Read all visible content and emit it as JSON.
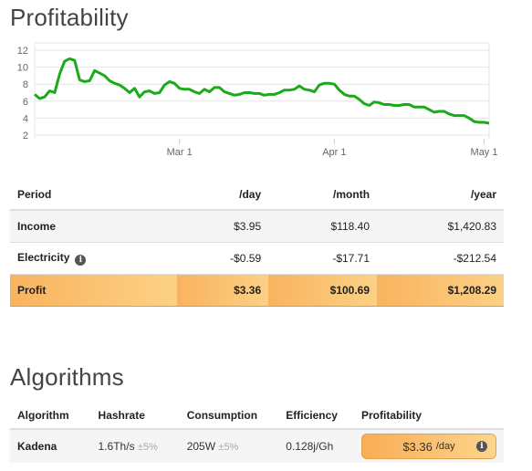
{
  "profitability": {
    "title": "Profitability"
  },
  "chart_data": {
    "type": "line",
    "ylim": [
      2,
      12
    ],
    "yticks": [
      "2",
      "4",
      "6",
      "8",
      "10",
      "12"
    ],
    "xticks": [
      {
        "label": "Mar 1",
        "x": 29
      },
      {
        "label": "Apr 1",
        "x": 60
      },
      {
        "label": "May 1",
        "x": 90
      }
    ],
    "grid": true,
    "color": "#1aaa1a",
    "series": [
      {
        "x": [
          0,
          1,
          2,
          3,
          4,
          5,
          6,
          7,
          8,
          9,
          10,
          11,
          12,
          13,
          14,
          15,
          16,
          17,
          18,
          19,
          20,
          21,
          22,
          23,
          24,
          25,
          26,
          27,
          28,
          29,
          30,
          31,
          32,
          33,
          34,
          35,
          36,
          37,
          38,
          39,
          40,
          41,
          42,
          43,
          44,
          45,
          46,
          47,
          48,
          49,
          50,
          51,
          52,
          53,
          54,
          55,
          56,
          57,
          58,
          59,
          60,
          61,
          62,
          63,
          64,
          65,
          66,
          67,
          68,
          69,
          70,
          71,
          72,
          73,
          74,
          75,
          76,
          77,
          78,
          79,
          80,
          81,
          82,
          83,
          84,
          85,
          86,
          87,
          88,
          89,
          90,
          91
        ],
        "y": [
          6.8,
          6.3,
          6.5,
          7.2,
          7.0,
          9.2,
          10.7,
          11.0,
          10.8,
          8.5,
          8.3,
          8.4,
          9.6,
          9.3,
          9.0,
          8.4,
          8.1,
          7.9,
          7.5,
          7.0,
          7.5,
          6.5,
          7.1,
          7.2,
          6.9,
          7.0,
          7.9,
          8.3,
          8.1,
          7.5,
          7.4,
          7.4,
          7.1,
          6.9,
          7.4,
          7.1,
          7.6,
          7.6,
          7.1,
          6.9,
          6.7,
          6.8,
          7.0,
          7.0,
          6.9,
          6.9,
          6.7,
          6.8,
          6.8,
          7.0,
          7.3,
          7.3,
          7.4,
          7.8,
          7.4,
          7.3,
          7.1,
          7.9,
          8.1,
          8.1,
          8.0,
          7.3,
          6.8,
          6.6,
          6.6,
          6.2,
          5.7,
          5.5,
          5.9,
          5.8,
          5.6,
          5.6,
          5.5,
          5.5,
          5.6,
          5.6,
          5.3,
          5.3,
          5.3,
          5.0,
          4.7,
          4.8,
          4.8,
          4.5,
          4.3,
          4.3,
          4.3,
          4.0,
          3.6,
          3.5,
          3.5,
          3.4
        ]
      }
    ]
  },
  "profit_table": {
    "headers": [
      "Period",
      "/day",
      "/month",
      "/year"
    ],
    "rows": [
      {
        "label": "Income",
        "day": "$3.95",
        "month": "$118.40",
        "year": "$1,420.83"
      },
      {
        "label": "Electricity",
        "day": "-$0.59",
        "month": "-$17.71",
        "year": "-$212.54"
      },
      {
        "label": "Profit",
        "day": "$3.36",
        "month": "$100.69",
        "year": "$1,208.29"
      }
    ]
  },
  "algorithms": {
    "title": "Algorithms",
    "headers": [
      "Algorithm",
      "Hashrate",
      "Consumption",
      "Efficiency",
      "Profitability"
    ],
    "row": {
      "name": "Kadena",
      "hashrate": "1.6Th/s",
      "hashrate_tol": "±5%",
      "consumption": "205W",
      "consumption_tol": "±5%",
      "efficiency": "0.128j/Gh",
      "profit": "$3.36",
      "profit_unit": "/day"
    }
  },
  "icons": {
    "info": "info-icon",
    "info_glyph": "i"
  }
}
